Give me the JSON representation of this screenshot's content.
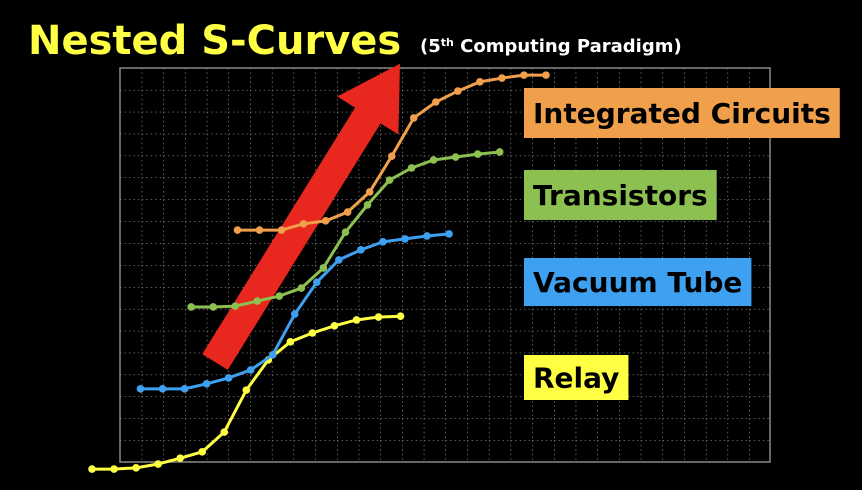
{
  "chart_data": {
    "type": "line",
    "title": "Nested S-Curves",
    "subtitle_parts": [
      "(5",
      "th",
      " Computing Paradigm)"
    ],
    "xlim": [
      0,
      20.6
    ],
    "ylim": [
      0,
      100
    ],
    "grid": true,
    "series": [
      {
        "name": "Relay",
        "color": "#ffff44",
        "x": [
          0,
          1,
          2,
          3,
          4,
          5,
          6,
          7,
          8,
          9,
          10,
          11,
          12,
          13,
          14
        ],
        "values": [
          2.6,
          2.6,
          2.9,
          3.8,
          5.2,
          6.7,
          11.4,
          21.4,
          28.6,
          32.9,
          35,
          36.7,
          38.1,
          38.8,
          39
        ]
      },
      {
        "name": "Vacuum Tube",
        "color": "#3ea0f0",
        "x": [
          2.2,
          3.2,
          4.2,
          5.2,
          6.2,
          7.2,
          8.2,
          9.2,
          10.2,
          11.2,
          12.2,
          13.2,
          14.2,
          15.2,
          16.2
        ],
        "values": [
          21.7,
          21.7,
          21.7,
          22.9,
          24.3,
          26.2,
          29.8,
          39.5,
          47.1,
          52.4,
          54.8,
          56.7,
          57.4,
          58.1,
          58.6
        ]
      },
      {
        "name": "Transistors",
        "color": "#8cc152",
        "x": [
          4.5,
          5.5,
          6.5,
          7.5,
          8.5,
          9.5,
          10.5,
          11.5,
          12.5,
          13.5,
          14.5,
          15.5,
          16.5,
          17.5,
          18.5
        ],
        "values": [
          41.2,
          41.2,
          41.4,
          42.6,
          43.8,
          45.7,
          50.5,
          59,
          65.5,
          71.4,
          74.3,
          76.2,
          76.9,
          77.6,
          78.1
        ]
      },
      {
        "name": "Integrated Circuits",
        "color": "#f0a04b",
        "x": [
          6.6,
          7.6,
          8.6,
          9.6,
          10.6,
          11.6,
          12.6,
          13.6,
          14.6,
          15.6,
          16.6,
          17.6,
          18.6,
          19.6,
          20.6
        ],
        "values": [
          59.5,
          59.5,
          59.5,
          61,
          61.7,
          63.8,
          68.6,
          77.1,
          86.2,
          90,
          92.6,
          94.8,
          95.7,
          96.4,
          96.4
        ]
      }
    ]
  }
}
